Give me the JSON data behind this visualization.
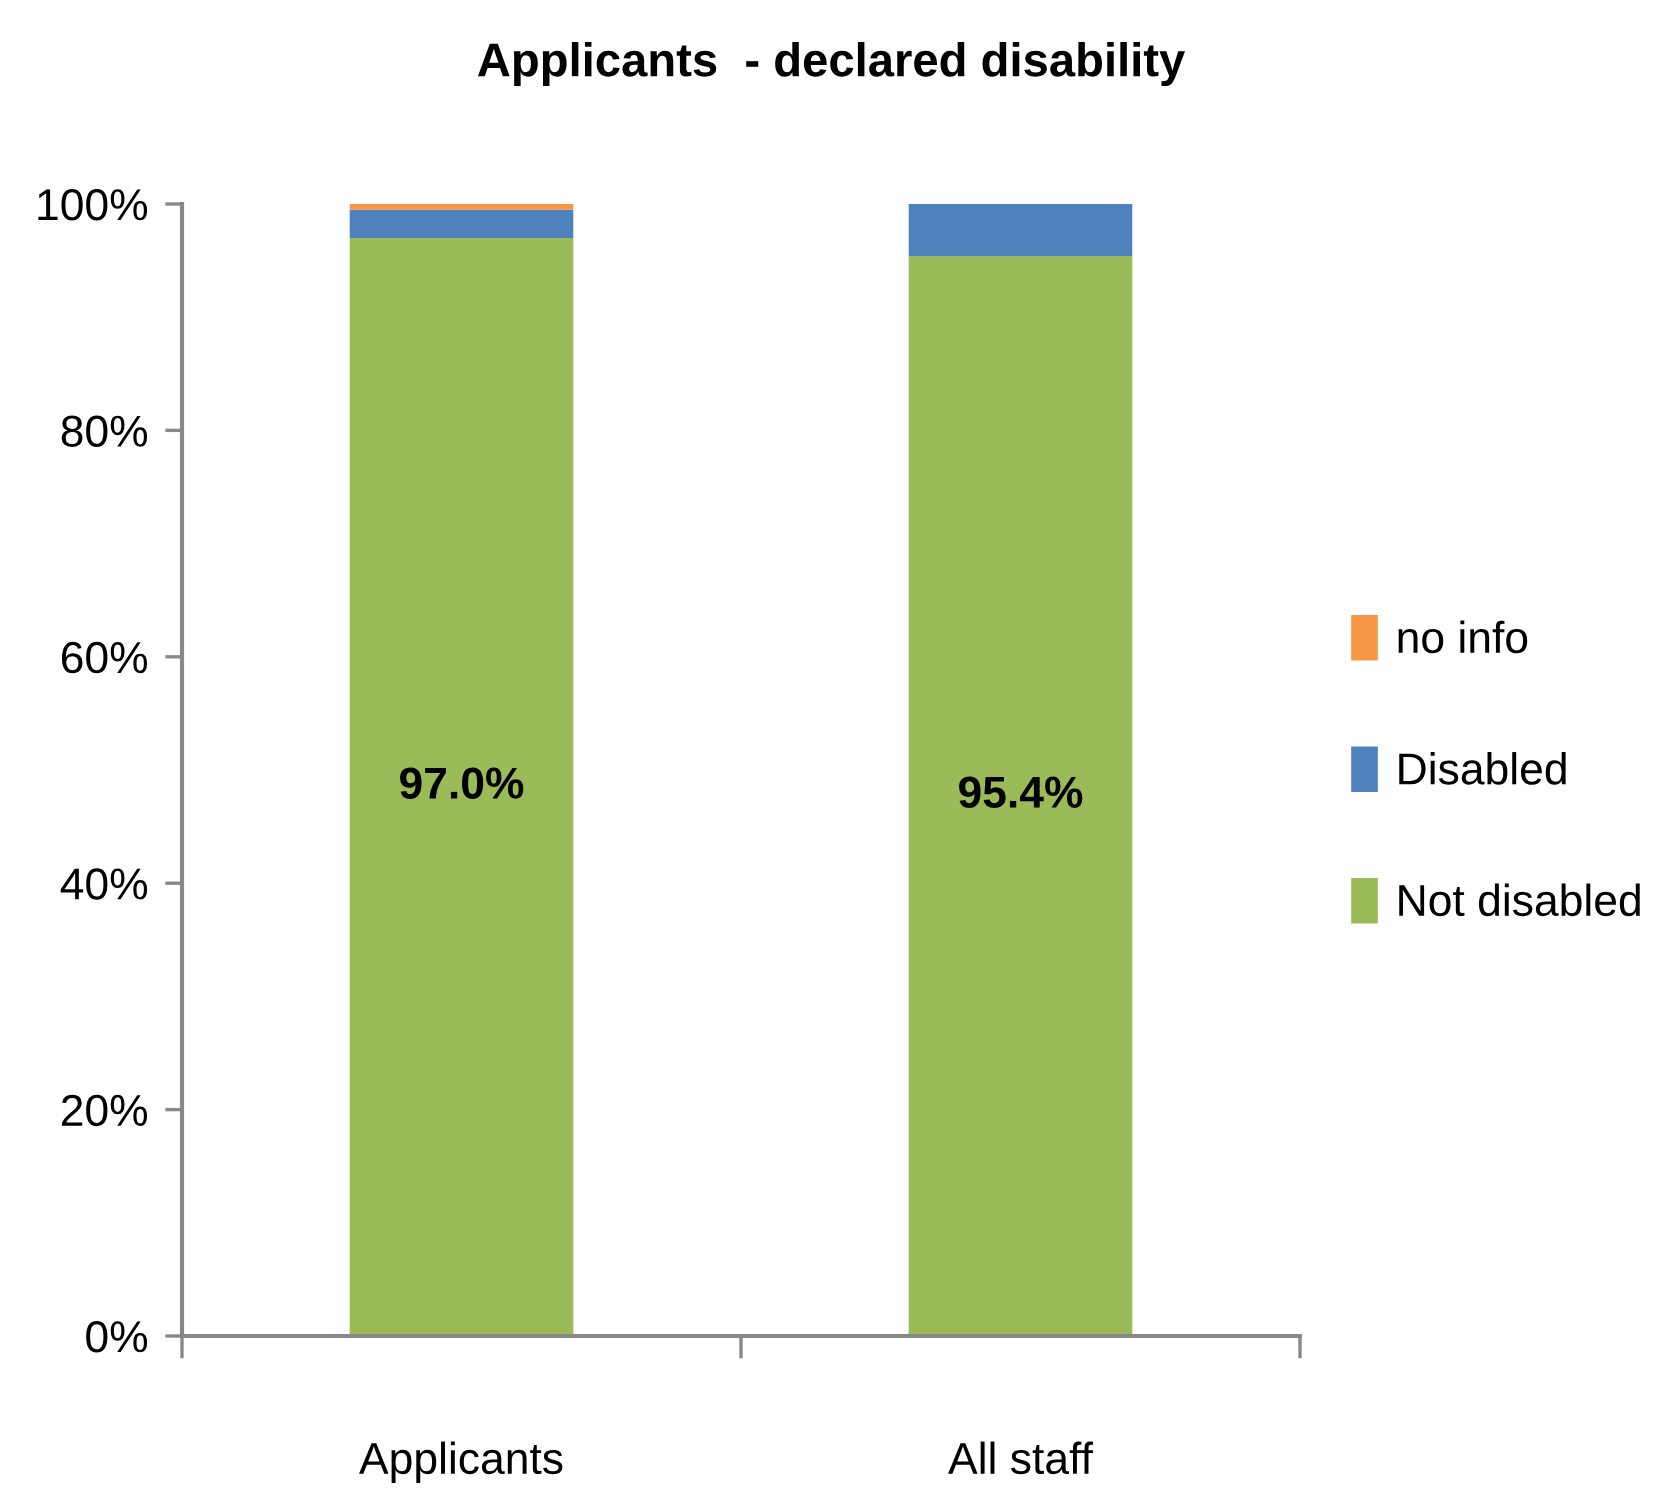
{
  "chart_data": {
    "type": "bar",
    "title": "Applicants  - declared disability",
    "stacked": true,
    "categories": [
      "Applicants",
      "All staff"
    ],
    "series": [
      {
        "name": "Not disabled",
        "color": "#9bbb59",
        "values": [
          97.0,
          95.4
        ],
        "value_labels": [
          "97.0%",
          "95.4%"
        ]
      },
      {
        "name": "Disabled",
        "color": "#4f81bd",
        "values": [
          2.5,
          4.6
        ]
      },
      {
        "name": "no info",
        "color": "#f79646",
        "values": [
          0.5,
          null
        ]
      }
    ],
    "ylim": [
      0,
      100
    ],
    "yticks": [
      {
        "value": 0,
        "label": "0%"
      },
      {
        "value": 20,
        "label": "20%"
      },
      {
        "value": 40,
        "label": "40%"
      },
      {
        "value": 60,
        "label": "60%"
      },
      {
        "value": 80,
        "label": "80%"
      },
      {
        "value": 100,
        "label": "100%"
      }
    ],
    "grid": false,
    "legend": "right"
  }
}
